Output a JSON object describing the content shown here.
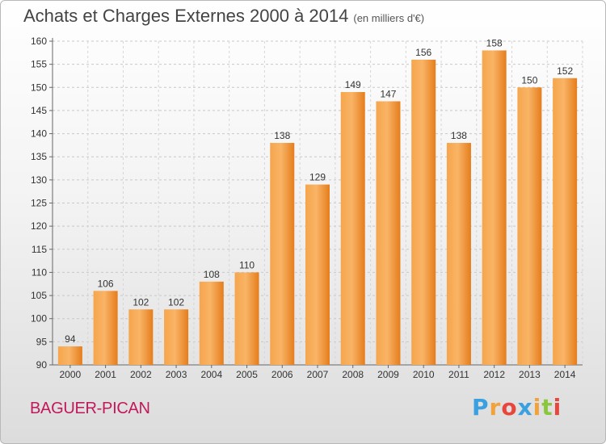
{
  "header": {
    "title": "Achats et Charges Externes 2000 à 2014",
    "subtitle": "(en milliers d'€)"
  },
  "footer": {
    "commune": "BAGUER-PICAN",
    "logo_letters": [
      "P",
      "r",
      "o",
      "x",
      "i",
      "t",
      "i"
    ],
    "logo_colors": [
      "#3aa0e0",
      "#f2a23a",
      "#e8463c",
      "#3aa0e0",
      "#f2a23a",
      "#8cc63e",
      "#e8463c"
    ]
  },
  "chart_data": {
    "type": "bar",
    "title": "Achats et Charges Externes 2000 à 2014",
    "subtitle": "(en milliers d'€)",
    "categories": [
      "2000",
      "2001",
      "2002",
      "2003",
      "2004",
      "2005",
      "2006",
      "2007",
      "2008",
      "2009",
      "2010",
      "2011",
      "2012",
      "2013",
      "2014"
    ],
    "values": [
      94,
      106,
      102,
      102,
      108,
      110,
      138,
      129,
      149,
      147,
      156,
      138,
      158,
      150,
      152
    ],
    "ylim": [
      90,
      160
    ],
    "yticks": [
      90,
      95,
      100,
      105,
      110,
      115,
      120,
      125,
      130,
      135,
      140,
      145,
      150,
      155,
      160
    ],
    "grid": true,
    "bar_color": "#f08a28",
    "bar_color_light": "#f9b060"
  }
}
